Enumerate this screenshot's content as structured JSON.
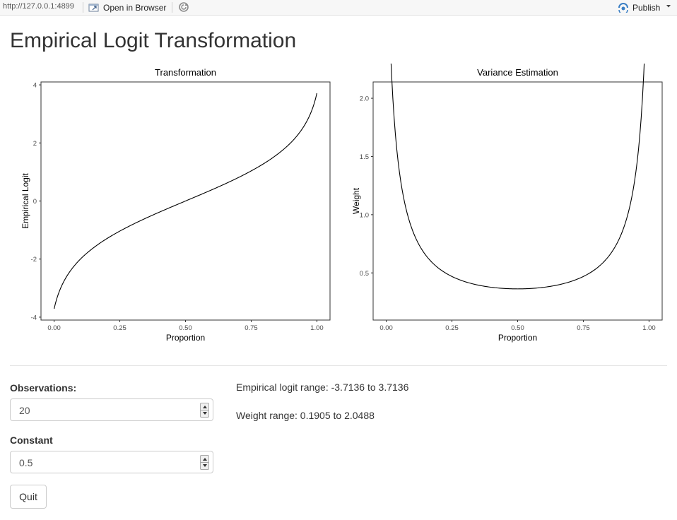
{
  "toolbar": {
    "url": "http://127.0.0.1:4899",
    "open_in_browser": "Open in Browser",
    "publish": "Publish"
  },
  "page": {
    "title": "Empirical Logit Transformation"
  },
  "inputs": {
    "observations": {
      "label": "Observations:",
      "value": "20"
    },
    "constant": {
      "label": "Constant",
      "value": "0.5"
    },
    "quit_label": "Quit"
  },
  "outputs": {
    "logit_range": "Empirical logit range: -3.7136 to 3.7136",
    "weight_range": "Weight range: 0.1905 to 2.0488"
  },
  "chart_data": [
    {
      "type": "line",
      "title": "Transformation",
      "xlabel": "Proportion",
      "ylabel": "Empirical Logit",
      "xlim": [
        -0.05,
        1.05
      ],
      "ylim": [
        -4.1,
        4.1
      ],
      "xticks": [
        "0.00",
        "0.25",
        "0.50",
        "0.75",
        "1.00"
      ],
      "xtick_values": [
        0,
        0.25,
        0.5,
        0.75,
        1
      ],
      "yticks": [
        "-4",
        "-2",
        "0",
        "2",
        "4"
      ],
      "ytick_values": [
        -4,
        -2,
        0,
        2,
        4
      ],
      "n": 20,
      "constant": 0.5,
      "grid": false,
      "color": "#000000"
    },
    {
      "type": "line",
      "title": "Variance Estimation",
      "xlabel": "Proportion",
      "ylabel": "Weight",
      "xlim": [
        -0.05,
        1.05
      ],
      "ylim": [
        0.095,
        2.14
      ],
      "xticks": [
        "0.00",
        "0.25",
        "0.50",
        "0.75",
        "1.00"
      ],
      "xtick_values": [
        0,
        0.25,
        0.5,
        0.75,
        1
      ],
      "yticks": [
        "0.5",
        "1.0",
        "1.5",
        "2.0"
      ],
      "ytick_values": [
        0.5,
        1.0,
        1.5,
        2.0
      ],
      "n": 20,
      "constant": 0.5,
      "grid": false,
      "color": "#000000"
    }
  ]
}
